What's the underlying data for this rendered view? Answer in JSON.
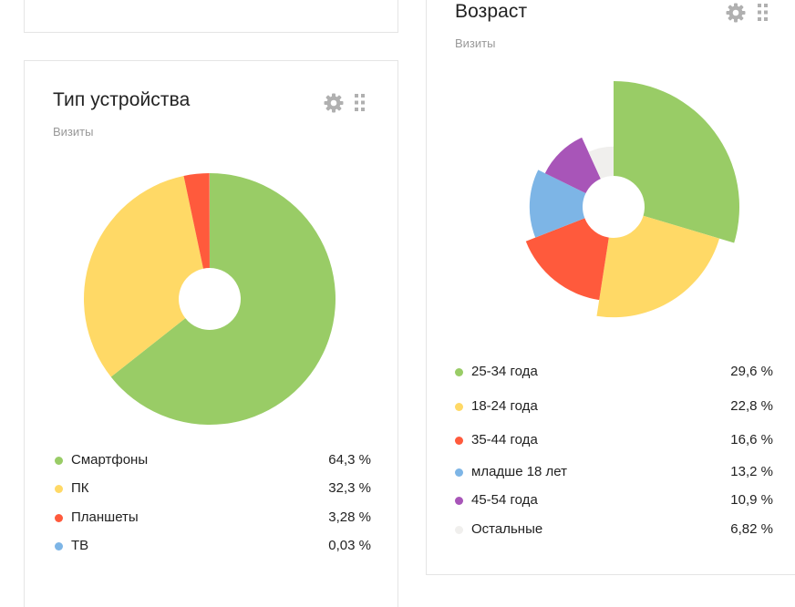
{
  "device_widget": {
    "title": "Тип устройства",
    "subtitle": "Визиты",
    "icons": {
      "settings": "gear-icon",
      "drag": "drag-handle-icon"
    },
    "legend": [
      {
        "label": "Смартфоны",
        "value": "64,3 %",
        "color": "#99cc66"
      },
      {
        "label": "ПК",
        "value": "32,3 %",
        "color": "#ffd966"
      },
      {
        "label": "Планшеты",
        "value": "3,28 %",
        "color": "#ff5a3c"
      },
      {
        "label": "ТВ",
        "value": "0,03 %",
        "color": "#7db5e6"
      }
    ]
  },
  "age_widget": {
    "title": "Возраст",
    "subtitle": "Визиты",
    "icons": {
      "settings": "gear-icon",
      "drag": "drag-handle-icon"
    },
    "legend": [
      {
        "label": "25-34 года",
        "value": "29,6 %",
        "color": "#99cc66"
      },
      {
        "label": "18-24 года",
        "value": "22,8 %",
        "color": "#ffd966"
      },
      {
        "label": "35-44 года",
        "value": "16,6 %",
        "color": "#ff5a3c"
      },
      {
        "label": "младше 18 лет",
        "value": "13,2 %",
        "color": "#7db5e6"
      },
      {
        "label": "45-54 года",
        "value": "10,9 %",
        "color": "#a855b8"
      },
      {
        "label": "Остальные",
        "value": "6,82 %",
        "color": "#f0efed"
      }
    ]
  },
  "chart_data": [
    {
      "type": "pie",
      "categories": [
        "Смартфоны",
        "ПК",
        "Планшеты",
        "ТВ"
      ],
      "values": [
        64.3,
        32.3,
        3.28,
        0.03
      ],
      "colors": [
        "#99cc66",
        "#ffd966",
        "#ff5a3c",
        "#7db5e6"
      ],
      "title": "Тип устройства",
      "subtitle": "Визиты",
      "variant": "donut"
    },
    {
      "type": "pie",
      "categories": [
        "25-34 года",
        "18-24 года",
        "35-44 года",
        "младше 18 лет",
        "45-54 года",
        "Остальные"
      ],
      "values": [
        29.6,
        22.8,
        16.6,
        13.2,
        10.9,
        6.82
      ],
      "colors": [
        "#99cc66",
        "#ffd966",
        "#ff5a3c",
        "#7db5e6",
        "#a855b8",
        "#f0efed"
      ],
      "title": "Возраст",
      "subtitle": "Визиты",
      "variant": "nightingale-rose"
    }
  ]
}
